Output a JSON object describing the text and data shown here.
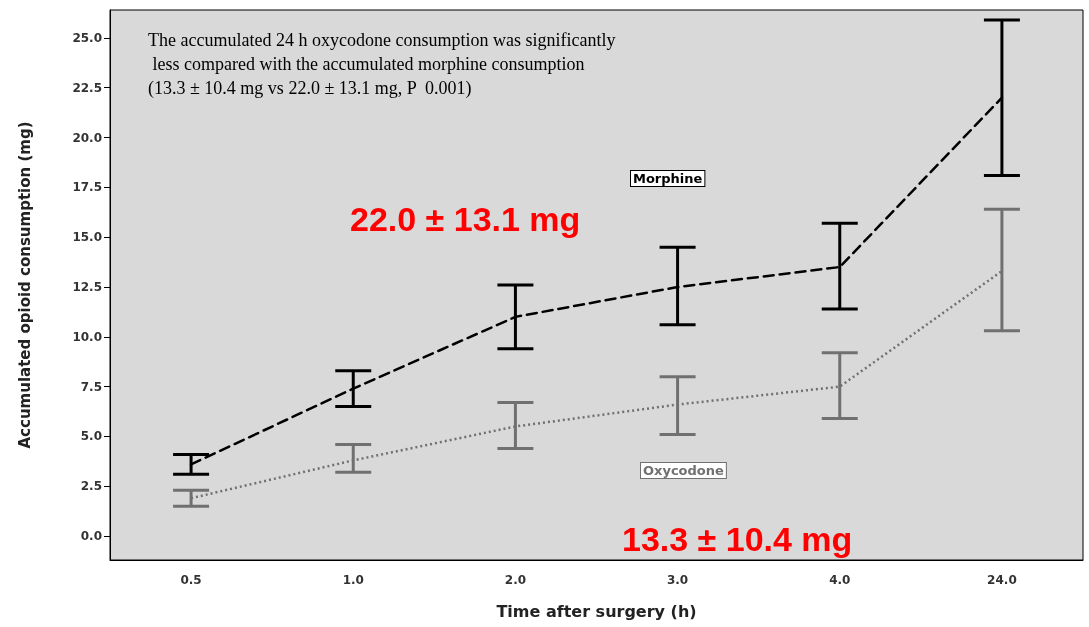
{
  "chart_data": {
    "type": "line",
    "xlabel": "Time after surgery (h)",
    "ylabel": "Accumulated opioid consumption (mg)",
    "categories": [
      "0.5",
      "1.0",
      "2.0",
      "3.0",
      "4.0",
      "24.0"
    ],
    "series": [
      {
        "name": "Morphine",
        "color": "#000000",
        "line_style": "dashed",
        "values": [
          3.6,
          7.4,
          11.0,
          12.5,
          13.5,
          22.0
        ],
        "errors": [
          [
            3.1,
            4.1
          ],
          [
            6.5,
            8.3
          ],
          [
            9.4,
            12.6
          ],
          [
            10.6,
            14.5
          ],
          [
            11.4,
            15.7
          ],
          [
            18.1,
            25.9
          ]
        ]
      },
      {
        "name": "Oxycodone",
        "color": "#707070",
        "line_style": "dotted",
        "values": [
          1.9,
          3.8,
          5.5,
          6.6,
          7.5,
          13.3
        ],
        "errors": [
          [
            1.5,
            2.3
          ],
          [
            3.2,
            4.6
          ],
          [
            4.4,
            6.7
          ],
          [
            5.1,
            8.0
          ],
          [
            5.9,
            9.2
          ],
          [
            10.3,
            16.4
          ]
        ]
      }
    ],
    "ylim": [
      -1.2,
      26.4
    ],
    "yticks": [
      {
        "value": 0,
        "label": "0.0"
      },
      {
        "value": 2.5,
        "label": "2.5"
      },
      {
        "value": 5,
        "label": "5.0"
      },
      {
        "value": 7.5,
        "label": "7.5"
      },
      {
        "value": 10,
        "label": "10.0"
      },
      {
        "value": 12.5,
        "label": "12.5"
      },
      {
        "value": 15,
        "label": "15.0"
      },
      {
        "value": 17.5,
        "label": "17.5"
      },
      {
        "value": 20,
        "label": "20.0"
      },
      {
        "value": 22.5,
        "label": "22.5"
      },
      {
        "value": 25,
        "label": "25.0"
      }
    ],
    "marker": "none",
    "grid": false,
    "legend": false,
    "annotations": [
      "The accumulated 24 h oxycodone consumption was significantly less compared with the accumulated morphine consumption (13.3 ± 10.4 mg vs 22.0 ± 13.1 mg, P  0.001)",
      "22.0 ± 13.1 mg",
      "13.3 ± 10.4 mg"
    ]
  }
}
